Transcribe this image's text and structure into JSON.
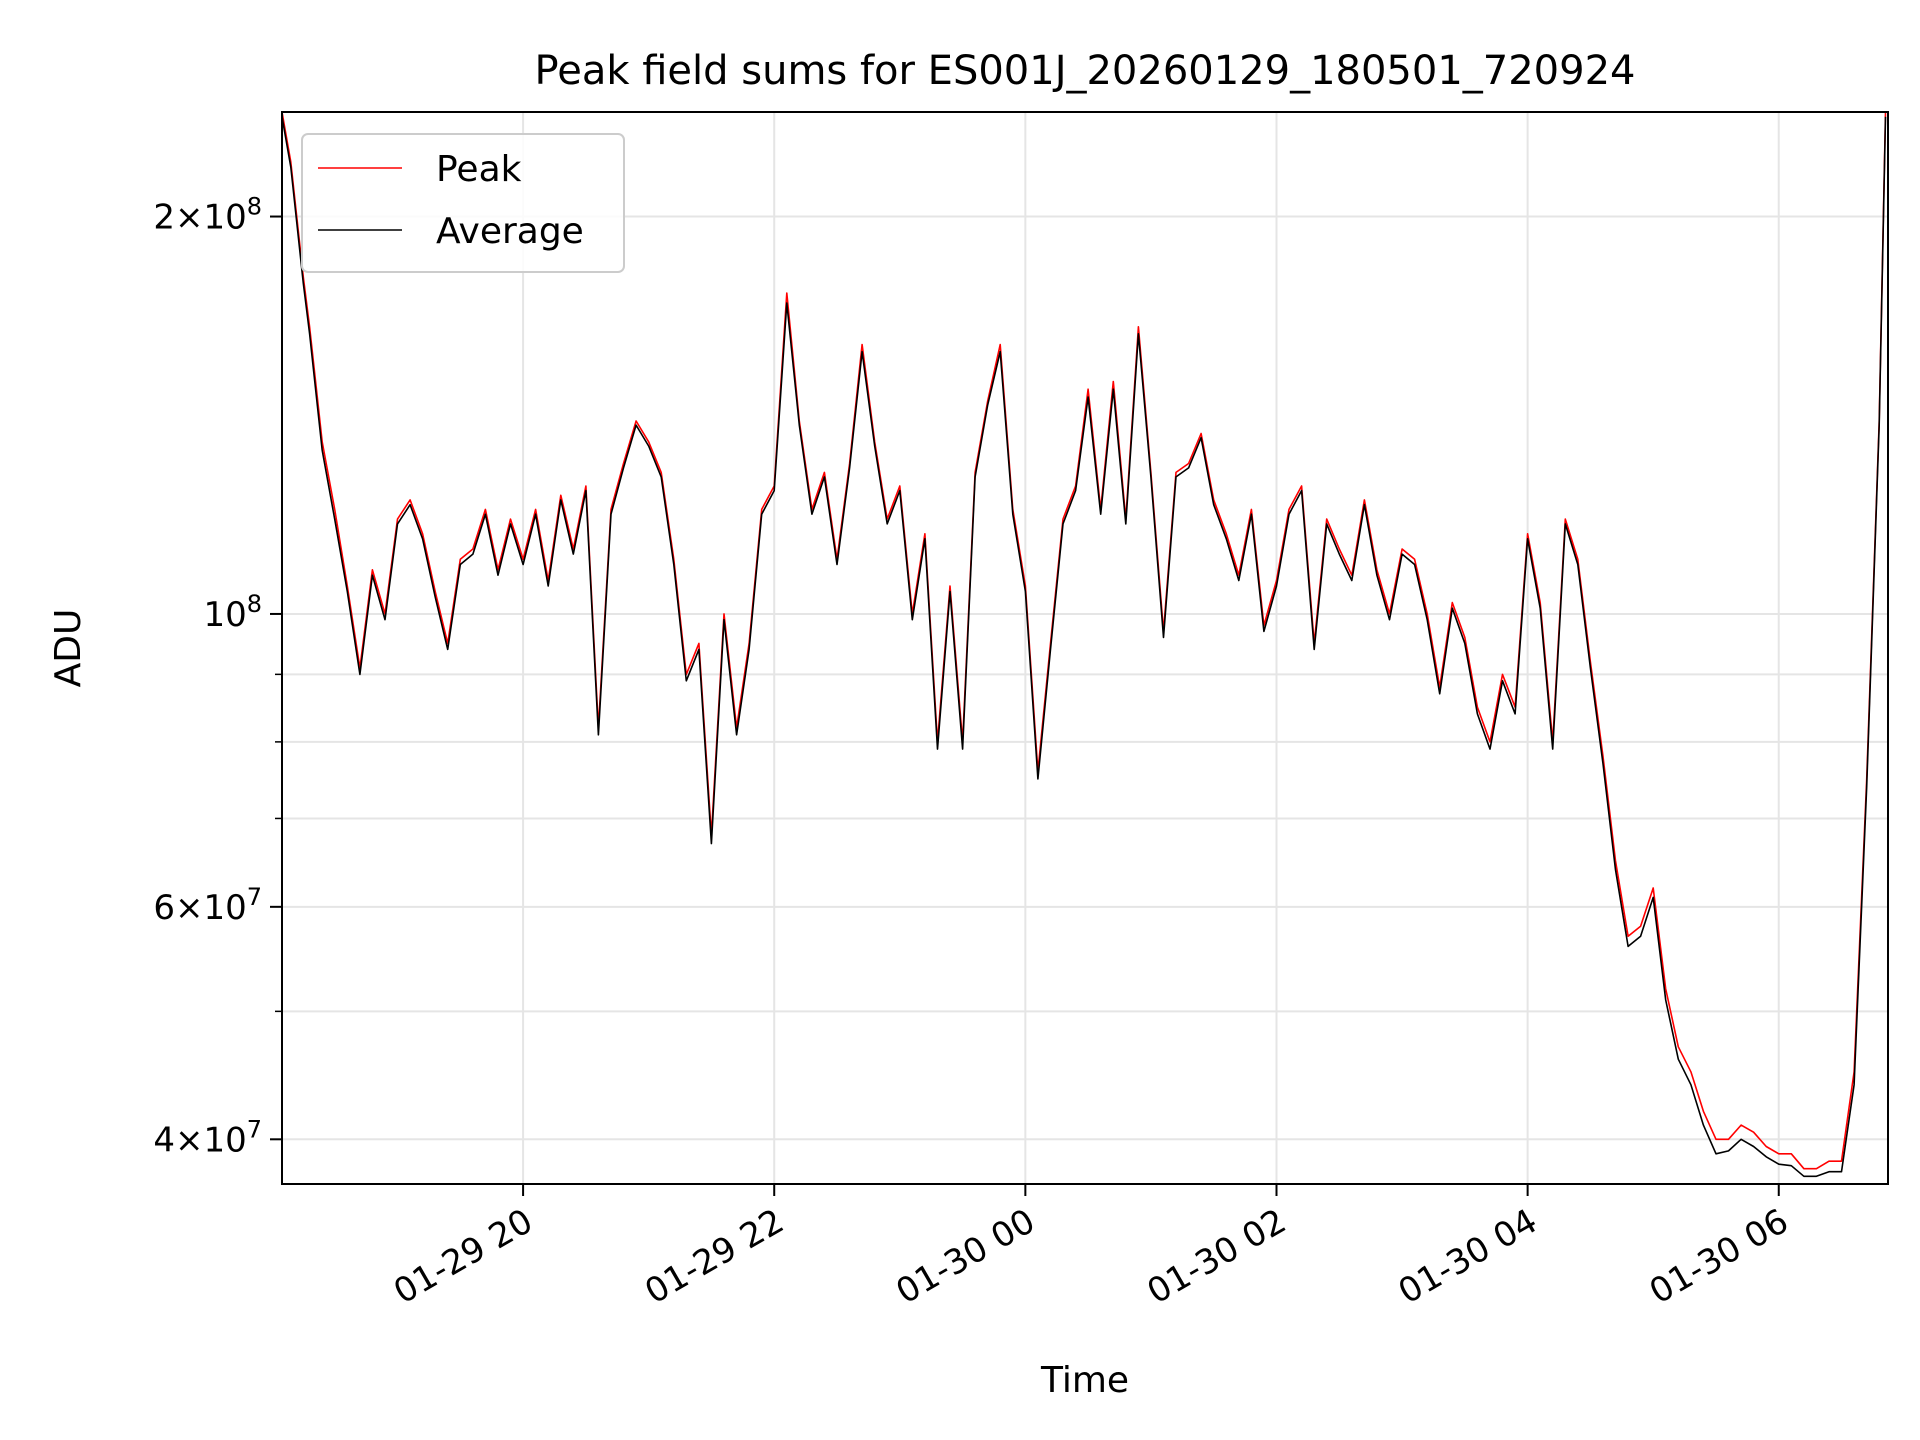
{
  "chart_data": {
    "type": "line",
    "title": "Peak field sums for ES001J_20260129_180501_720924",
    "xlabel": "Time",
    "ylabel": "ADU",
    "yscale": "log",
    "grid": true,
    "legend_position": "top-left",
    "xlim_hours": [
      18.08,
      30.87
    ],
    "ylim": [
      37000000,
      240000000
    ],
    "x_ticks": [
      {
        "hour": 20,
        "label": "01-29 20"
      },
      {
        "hour": 22,
        "label": "01-29 22"
      },
      {
        "hour": 24,
        "label": "01-30 00"
      },
      {
        "hour": 26,
        "label": "01-30 02"
      },
      {
        "hour": 28,
        "label": "01-30 04"
      },
      {
        "hour": 30,
        "label": "01-30 06"
      }
    ],
    "y_ticks": [
      {
        "value": 40000000,
        "mantissa": "4",
        "exponent": "7"
      },
      {
        "value": 60000000,
        "mantissa": "6",
        "exponent": "7"
      },
      {
        "value": 100000000,
        "mantissa": "",
        "exponent": "8"
      },
      {
        "value": 200000000,
        "mantissa": "2",
        "exponent": "8"
      }
    ],
    "y_minor_ticks": [
      50000000,
      70000000,
      80000000,
      90000000
    ],
    "series": [
      {
        "name": "Peak",
        "color": "#ff0000",
        "x_hours": [
          18.08,
          18.15,
          18.25,
          18.3,
          18.4,
          18.5,
          18.6,
          18.7,
          18.8,
          18.9,
          19.0,
          19.1,
          19.2,
          19.3,
          19.4,
          19.5,
          19.6,
          19.7,
          19.8,
          19.9,
          20.0,
          20.1,
          20.2,
          20.3,
          20.4,
          20.5,
          20.6,
          20.7,
          20.8,
          20.9,
          21.0,
          21.1,
          21.2,
          21.3,
          21.4,
          21.5,
          21.6,
          21.7,
          21.8,
          21.9,
          22.0,
          22.1,
          22.2,
          22.3,
          22.4,
          22.5,
          22.6,
          22.7,
          22.8,
          22.9,
          23.0,
          23.1,
          23.2,
          23.3,
          23.4,
          23.5,
          23.6,
          23.7,
          23.8,
          23.9,
          24.0,
          24.1,
          24.2,
          24.3,
          24.4,
          24.5,
          24.6,
          24.7,
          24.8,
          24.9,
          25.0,
          25.1,
          25.2,
          25.3,
          25.4,
          25.5,
          25.6,
          25.7,
          25.8,
          25.9,
          26.0,
          26.1,
          26.2,
          26.3,
          26.4,
          26.5,
          26.6,
          26.7,
          26.8,
          26.9,
          27.0,
          27.1,
          27.2,
          27.3,
          27.4,
          27.5,
          27.6,
          27.7,
          27.8,
          27.9,
          28.0,
          28.1,
          28.2,
          28.3,
          28.4,
          28.5,
          28.6,
          28.7,
          28.8,
          28.9,
          29.0,
          29.1,
          29.2,
          29.3,
          29.4,
          29.5,
          29.6,
          29.7,
          29.8,
          29.9,
          30.0,
          30.1,
          30.2,
          30.3,
          30.4,
          30.5,
          30.6,
          30.7,
          30.8,
          30.85
        ],
        "values": [
          240000000,
          220000000,
          180000000,
          165000000,
          135000000,
          120000000,
          105000000,
          91000000,
          108000000,
          100000000,
          118000000,
          122000000,
          115000000,
          104000000,
          95000000,
          110000000,
          112000000,
          120000000,
          108000000,
          118000000,
          110000000,
          120000000,
          106000000,
          123000000,
          112000000,
          125000000,
          82000000,
          120000000,
          130000000,
          140000000,
          135000000,
          128000000,
          110000000,
          90000000,
          95000000,
          68000000,
          100000000,
          82000000,
          95000000,
          120000000,
          125000000,
          175000000,
          140000000,
          120000000,
          128000000,
          110000000,
          130000000,
          160000000,
          135000000,
          118000000,
          125000000,
          100000000,
          115000000,
          80000000,
          105000000,
          80000000,
          128000000,
          145000000,
          160000000,
          120000000,
          105000000,
          76000000,
          95000000,
          118000000,
          125000000,
          148000000,
          120000000,
          150000000,
          118000000,
          165000000,
          128000000,
          97000000,
          128000000,
          130000000,
          137000000,
          122000000,
          115000000,
          107000000,
          120000000,
          98000000,
          106000000,
          120000000,
          125000000,
          95000000,
          118000000,
          112000000,
          107000000,
          122000000,
          108000000,
          100000000,
          112000000,
          110000000,
          100000000,
          88000000,
          102000000,
          96000000,
          85000000,
          80000000,
          90000000,
          85000000,
          115000000,
          102000000,
          80000000,
          118000000,
          110000000,
          92000000,
          78000000,
          65000000,
          57000000,
          58000000,
          62000000,
          52000000,
          47000000,
          45000000,
          42000000,
          40000000,
          40000000,
          41000000,
          40500000,
          39500000,
          39000000,
          39000000,
          38000000,
          38000000,
          38500000,
          38500000,
          45000000,
          75000000,
          140000000,
          240000000
        ]
      },
      {
        "name": "Average",
        "color": "#000000",
        "x_hours": [
          18.08,
          18.15,
          18.25,
          18.3,
          18.4,
          18.5,
          18.6,
          18.7,
          18.8,
          18.9,
          19.0,
          19.1,
          19.2,
          19.3,
          19.4,
          19.5,
          19.6,
          19.7,
          19.8,
          19.9,
          20.0,
          20.1,
          20.2,
          20.3,
          20.4,
          20.5,
          20.6,
          20.7,
          20.8,
          20.9,
          21.0,
          21.1,
          21.2,
          21.3,
          21.4,
          21.5,
          21.6,
          21.7,
          21.8,
          21.9,
          22.0,
          22.1,
          22.2,
          22.3,
          22.4,
          22.5,
          22.6,
          22.7,
          22.8,
          22.9,
          23.0,
          23.1,
          23.2,
          23.3,
          23.4,
          23.5,
          23.6,
          23.7,
          23.8,
          23.9,
          24.0,
          24.1,
          24.2,
          24.3,
          24.4,
          24.5,
          24.6,
          24.7,
          24.8,
          24.9,
          25.0,
          25.1,
          25.2,
          25.3,
          25.4,
          25.5,
          25.6,
          25.7,
          25.8,
          25.9,
          26.0,
          26.1,
          26.2,
          26.3,
          26.4,
          26.5,
          26.6,
          26.7,
          26.8,
          26.9,
          27.0,
          27.1,
          27.2,
          27.3,
          27.4,
          27.5,
          27.6,
          27.7,
          27.8,
          27.9,
          28.0,
          28.1,
          28.2,
          28.3,
          28.4,
          28.5,
          28.6,
          28.7,
          28.8,
          28.9,
          29.0,
          29.1,
          29.2,
          29.3,
          29.4,
          29.5,
          29.6,
          29.7,
          29.8,
          29.9,
          30.0,
          30.1,
          30.2,
          30.3,
          30.4,
          30.5,
          30.6,
          30.7,
          30.8,
          30.85
        ],
        "values": [
          238000000,
          218000000,
          178000000,
          163000000,
          133000000,
          118000000,
          104000000,
          90000000,
          107000000,
          99000000,
          117000000,
          121000000,
          114000000,
          103000000,
          94000000,
          109000000,
          111000000,
          119000000,
          107000000,
          117000000,
          109000000,
          119000000,
          105000000,
          122000000,
          111000000,
          124000000,
          81000000,
          119000000,
          129000000,
          139000000,
          134000000,
          127000000,
          109000000,
          89000000,
          94000000,
          67000000,
          99000000,
          81000000,
          94000000,
          119000000,
          124000000,
          172000000,
          139000000,
          119000000,
          127000000,
          109000000,
          129000000,
          158000000,
          134000000,
          117000000,
          124000000,
          99000000,
          114000000,
          79000000,
          104000000,
          79000000,
          127000000,
          144000000,
          158000000,
          119000000,
          104000000,
          75000000,
          94000000,
          117000000,
          124000000,
          146000000,
          119000000,
          148000000,
          117000000,
          163000000,
          127000000,
          96000000,
          127000000,
          129000000,
          136000000,
          121000000,
          114000000,
          106000000,
          119000000,
          97000000,
          105000000,
          119000000,
          124000000,
          94000000,
          117000000,
          111000000,
          106000000,
          121000000,
          107000000,
          99000000,
          111000000,
          109000000,
          99000000,
          87000000,
          101000000,
          95000000,
          84000000,
          79000000,
          89000000,
          84000000,
          114000000,
          101000000,
          79000000,
          117000000,
          109000000,
          91000000,
          77000000,
          64000000,
          56000000,
          57000000,
          61000000,
          51000000,
          46000000,
          44000000,
          41000000,
          39000000,
          39200000,
          40000000,
          39500000,
          38800000,
          38300000,
          38200000,
          37500000,
          37500000,
          37800000,
          37800000,
          44000000,
          74000000,
          139000000,
          238000000
        ]
      }
    ]
  }
}
